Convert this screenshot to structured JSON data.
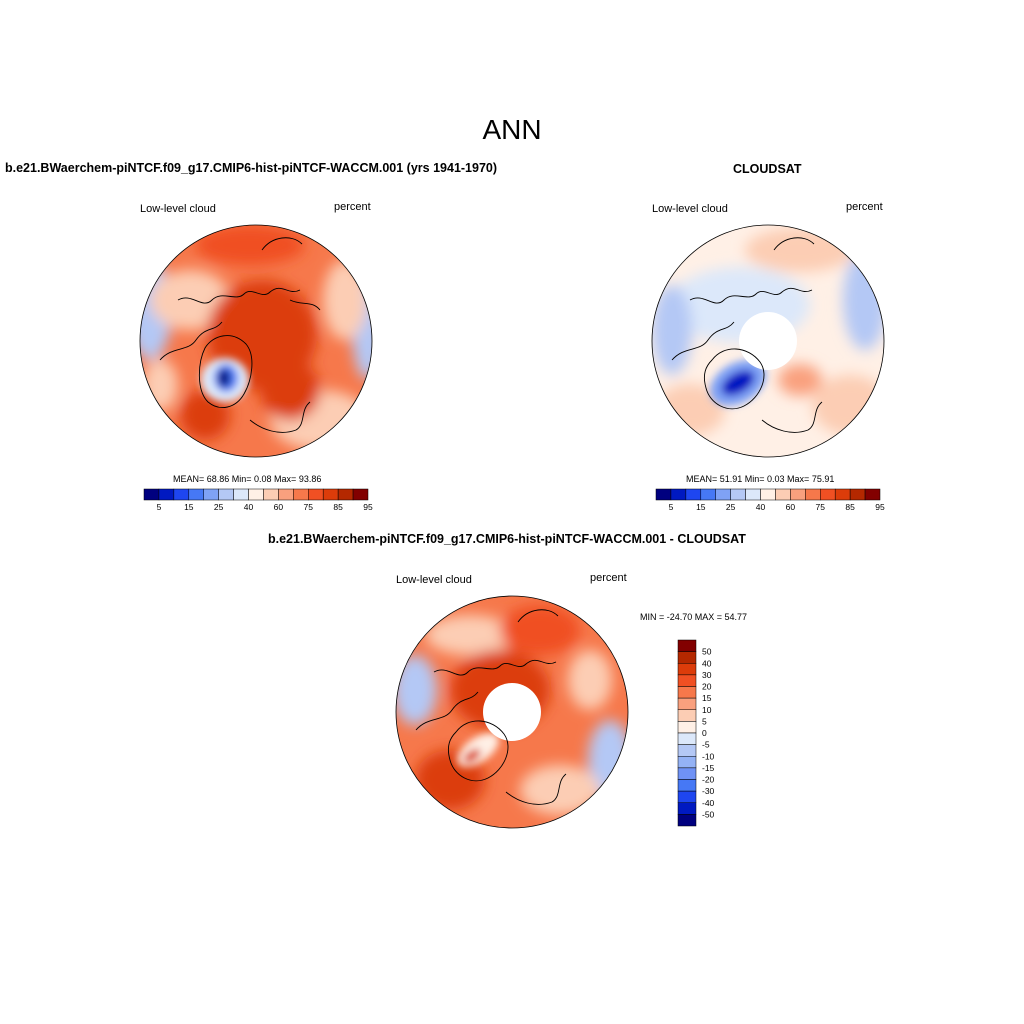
{
  "page": {
    "title": "ANN"
  },
  "panels": [
    {
      "id": "model",
      "case_title": "b.e21.BWaerchem-piNTCF.f09_g17.CMIP6-hist-piNTCF-WACCM.001 (yrs 1941-1970)",
      "variable": "Low-level cloud",
      "units": "percent",
      "stats": "MEAN=  68.86  Min=   0.08  Max=  93.86",
      "colorbar_labels": [
        "5",
        "15",
        "25",
        "40",
        "60",
        "75",
        "85",
        "95"
      ]
    },
    {
      "id": "obs",
      "case_title": "CLOUDSAT",
      "variable": "Low-level cloud",
      "units": "percent",
      "stats": "MEAN=  51.91  Min=   0.03  Max=  75.91",
      "colorbar_labels": [
        "5",
        "15",
        "25",
        "40",
        "60",
        "75",
        "85",
        "95"
      ]
    },
    {
      "id": "diff",
      "case_title": "b.e21.BWaerchem-piNTCF.f09_g17.CMIP6-hist-piNTCF-WACCM.001 - CLOUDSAT",
      "variable": "Low-level cloud",
      "units": "percent",
      "stats": "MIN = -24.70 MAX =  54.77",
      "colorbar_labels": [
        "50",
        "40",
        "30",
        "20",
        "15",
        "10",
        "5",
        "0",
        "-5",
        "-10",
        "-15",
        "-20",
        "-30",
        "-40",
        "-50"
      ]
    }
  ],
  "colors": {
    "abs_scale": [
      "#00007f",
      "#0019c1",
      "#1e46f0",
      "#4678f5",
      "#7fa2f5",
      "#b4c8f5",
      "#dce8fa",
      "#fff0e6",
      "#fccdb4",
      "#f9a07e",
      "#f6784b",
      "#f05023",
      "#dc3c0a",
      "#b42800",
      "#820000"
    ],
    "diff_scale": [
      "#820000",
      "#b42800",
      "#dc3c0a",
      "#f05023",
      "#f6784b",
      "#f9a07e",
      "#fccdb4",
      "#fff0e6",
      "#dce8fa",
      "#b4c8f5",
      "#94b2f5",
      "#6f92f5",
      "#4678f5",
      "#1e46f0",
      "#0019c1",
      "#00007f"
    ]
  }
}
